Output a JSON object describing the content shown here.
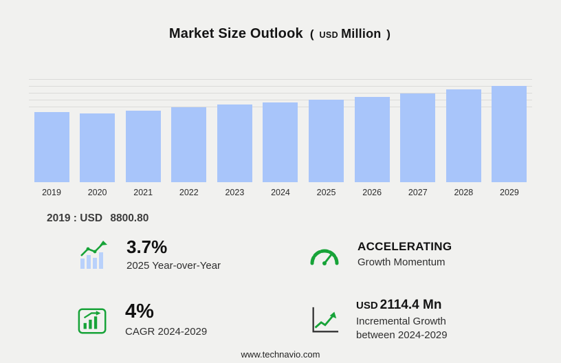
{
  "colors": {
    "background": "#f1f1ef",
    "bar": "#a8c5fa",
    "green": "#17a338",
    "grid": "#dbdbd9"
  },
  "title": {
    "main": "Market Size Outlook",
    "paren_open": "(",
    "currency": "USD",
    "unit": "Million",
    "paren_close": ")"
  },
  "chart_data": {
    "type": "bar",
    "title": "Market Size Outlook (USD Million)",
    "categories": [
      "2019",
      "2020",
      "2021",
      "2022",
      "2023",
      "2024",
      "2025",
      "2026",
      "2027",
      "2028",
      "2029"
    ],
    "values": [
      8800.8,
      8640,
      8980,
      9400,
      9750,
      9990,
      10360,
      10700,
      11130,
      11650,
      12104
    ],
    "xlabel": "",
    "ylabel": "",
    "ylim": [
      0,
      12800
    ],
    "grid": true,
    "legend": false,
    "bar_color": "#a8c5fa"
  },
  "note_2019": {
    "year": "2019",
    "separator": ":",
    "currency": "USD",
    "value": "8800.80"
  },
  "stats": {
    "yoy": {
      "value": "3.7%",
      "caption": "2025 Year-over-Year"
    },
    "momentum": {
      "title": "ACCELERATING",
      "caption": "Growth Momentum"
    },
    "cagr": {
      "value": "4%",
      "caption": "CAGR 2024-2029"
    },
    "incremental": {
      "currency": "USD",
      "value": "2114.4 Mn",
      "caption_line1": "Incremental Growth",
      "caption_line2": "between 2024-2029"
    }
  },
  "footer": {
    "url": "www.technavio.com"
  }
}
